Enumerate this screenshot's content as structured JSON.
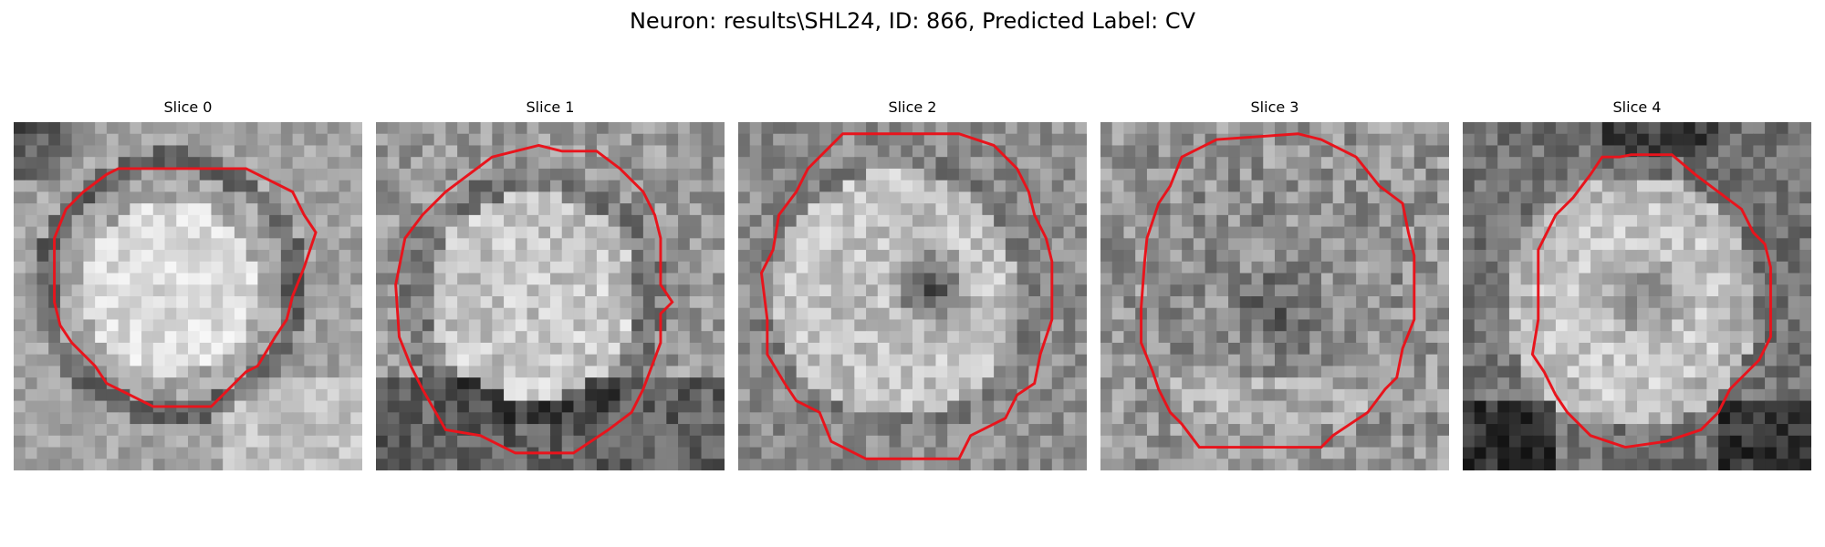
{
  "figure": {
    "title": "Neuron: results\\SHL24, ID: 866, Predicted Label: CV",
    "contour_color": "#e8141c",
    "colormap": "gray",
    "slices": [
      {
        "label": "Slice 0",
        "image_desc": "round bright soma, dark top-left corner",
        "contour": "octagonal red outline"
      },
      {
        "label": "Slice 1",
        "image_desc": "mottled bright soma with dark rim at bottom",
        "contour": "octagonal red outline"
      },
      {
        "label": "Slice 2",
        "image_desc": "bright ring with dark central spot",
        "contour": "octagonal red outline"
      },
      {
        "label": "Slice 3",
        "image_desc": "noisy texture, darker center",
        "contour": "octagonal red outline"
      },
      {
        "label": "Slice 4",
        "image_desc": "bright ring with darker center, dark bottom corners",
        "contour": "octagonal red outline"
      }
    ]
  }
}
